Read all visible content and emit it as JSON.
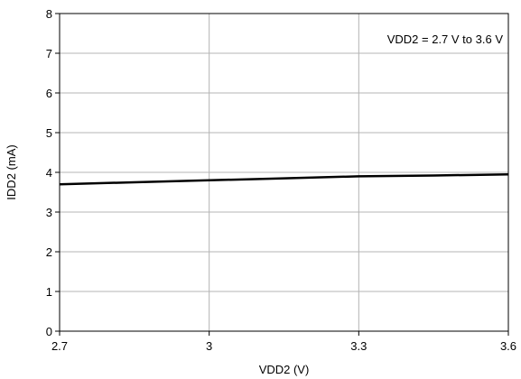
{
  "chart_data": {
    "type": "line",
    "xlabel": "VDD2 (V)",
    "ylabel": "IDD2 (mA)",
    "xlim": [
      2.7,
      3.6
    ],
    "ylim": [
      0,
      8
    ],
    "x_ticks": [
      2.7,
      3.0,
      3.3,
      3.6
    ],
    "x_tick_labels": [
      "2.7",
      "3",
      "3.3",
      "3.6"
    ],
    "y_ticks": [
      0,
      1,
      2,
      3,
      4,
      5,
      6,
      7,
      8
    ],
    "y_tick_labels": [
      "0",
      "1",
      "2",
      "3",
      "4",
      "5",
      "6",
      "7",
      "8"
    ],
    "grid": true,
    "annotation": "VDD2 = 2.7 V to 3.6 V",
    "series": [
      {
        "x": [
          2.7,
          2.85,
          3.0,
          3.15,
          3.3,
          3.45,
          3.6
        ],
        "y": [
          3.7,
          3.75,
          3.8,
          3.85,
          3.9,
          3.92,
          3.95
        ],
        "color": "#000000"
      }
    ]
  }
}
